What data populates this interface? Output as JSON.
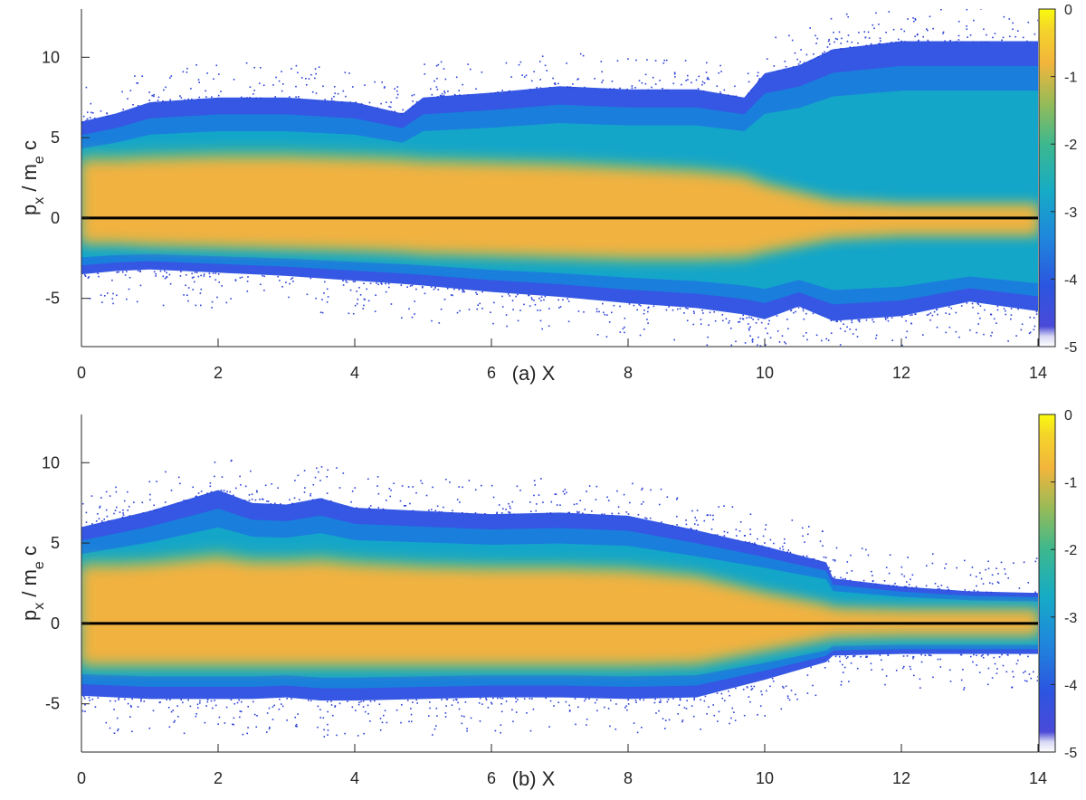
{
  "chart_data": [
    {
      "type": "heatmap",
      "panel_label": "(a)",
      "xlabel": "X",
      "ylabel_main": "p",
      "ylabel_sub1": "x",
      "ylabel_mid": " / m",
      "ylabel_sub2": "e",
      "ylabel_end": " c",
      "xlim": [
        0,
        14
      ],
      "ylim": [
        -8,
        13
      ],
      "xticks": [
        0,
        2,
        4,
        6,
        8,
        10,
        12,
        14
      ],
      "yticks": [
        -5,
        0,
        5,
        10
      ],
      "reference_line_y": 0,
      "colorbar": {
        "limits": [
          -5,
          0
        ],
        "ticks": [
          0,
          -1,
          -2,
          -3,
          -4,
          -5
        ],
        "colormap": "parula"
      },
      "envelope": {
        "x": [
          0,
          0.5,
          1,
          2,
          3,
          4,
          4.7,
          5,
          6,
          7,
          8,
          9,
          9.7,
          10,
          10.5,
          11,
          12,
          13,
          14
        ],
        "upper": [
          6,
          6.5,
          7.2,
          7.5,
          7.5,
          7.2,
          6.5,
          7.5,
          7.8,
          8.2,
          8,
          8,
          7.5,
          9,
          9.5,
          10.5,
          11,
          11,
          11
        ],
        "lower": [
          -3.5,
          -3.3,
          -3.2,
          -3.4,
          -3.6,
          -3.9,
          -4.1,
          -4.2,
          -4.6,
          -4.9,
          -5.3,
          -5.6,
          -6,
          -6.3,
          -5.5,
          -6.4,
          -6.1,
          -5.2,
          -5.8
        ],
        "core_upper": [
          3.5,
          3.5,
          3.6,
          3.7,
          3.7,
          3.6,
          3.5,
          3.4,
          3.3,
          3.2,
          3.0,
          2.8,
          2.5,
          2.0,
          1.5,
          1.0,
          0.8,
          0.8,
          0.8
        ],
        "core_lower": [
          -1.5,
          -1.5,
          -1.6,
          -1.7,
          -1.8,
          -1.9,
          -2.0,
          -2.1,
          -2.2,
          -2.3,
          -2.4,
          -2.4,
          -2.3,
          -2.0,
          -1.6,
          -1.2,
          -1.0,
          -1.0,
          -1.0
        ]
      }
    },
    {
      "type": "heatmap",
      "panel_label": "(b)",
      "xlabel": "X",
      "ylabel_main": "p",
      "ylabel_sub1": "x",
      "ylabel_mid": " / m",
      "ylabel_sub2": "e",
      "ylabel_end": " c",
      "xlim": [
        0,
        14
      ],
      "ylim": [
        -8,
        13
      ],
      "xticks": [
        0,
        2,
        4,
        6,
        8,
        10,
        12,
        14
      ],
      "yticks": [
        -5,
        0,
        5,
        10
      ],
      "reference_line_y": 0,
      "colorbar": {
        "limits": [
          -5,
          0
        ],
        "ticks": [
          0,
          -1,
          -2,
          -3,
          -4,
          -5
        ],
        "colormap": "parula"
      },
      "envelope": {
        "x": [
          0,
          0.5,
          1,
          2,
          2.5,
          3,
          3.5,
          4,
          5,
          6,
          7,
          8,
          9,
          10,
          10.9,
          11,
          12,
          13,
          14
        ],
        "upper": [
          6,
          6.5,
          7,
          8.3,
          7.5,
          7.4,
          7.8,
          7.2,
          7,
          6.8,
          6.9,
          6.7,
          5.8,
          4.8,
          3.8,
          2.8,
          2.3,
          2.0,
          1.9
        ],
        "lower": [
          -4.5,
          -4.6,
          -4.7,
          -4.7,
          -4.7,
          -4.6,
          -4.8,
          -4.8,
          -4.7,
          -4.6,
          -4.6,
          -4.7,
          -4.6,
          -3.5,
          -2.4,
          -2.0,
          -1.9,
          -1.9,
          -1.9
        ],
        "core_upper": [
          3.5,
          3.5,
          3.6,
          4.0,
          3.7,
          3.7,
          3.8,
          3.6,
          3.4,
          3.3,
          3.3,
          3.2,
          2.8,
          1.8,
          1.1,
          0.9,
          0.8,
          0.8,
          0.8
        ],
        "core_lower": [
          -2.5,
          -2.5,
          -2.5,
          -2.5,
          -2.5,
          -2.5,
          -2.5,
          -2.5,
          -2.5,
          -2.5,
          -2.5,
          -2.5,
          -2.4,
          -1.6,
          -0.9,
          -0.8,
          -0.7,
          -0.7,
          -0.7
        ]
      }
    }
  ]
}
